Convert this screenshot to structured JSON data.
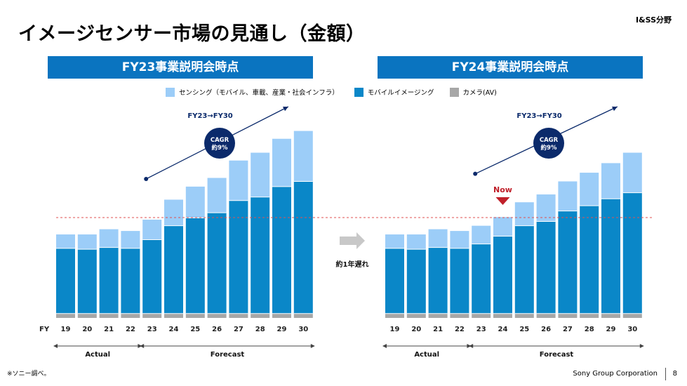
{
  "page": {
    "title": "イメージセンサー市場の見通し（金額）",
    "division": "I&SS分野",
    "footnote": "※ソニー調べ。",
    "corporation": "Sony Group Corporation",
    "page_number": "8"
  },
  "legend": {
    "items": [
      {
        "label": "センシング（モバイル、車載、産業・社会インフラ）",
        "color": "#9ccdf8"
      },
      {
        "label": "モバイルイメージング",
        "color": "#0a87c8"
      },
      {
        "label": "カメラ(AV)",
        "color": "#a7a7a7"
      }
    ]
  },
  "middle": {
    "delay_label": "約1年遅れ"
  },
  "chart_data": [
    {
      "type": "bar",
      "stacked": true,
      "title": "FY23事業説明会時点",
      "xlabel": "FY",
      "categories": [
        "19",
        "20",
        "21",
        "22",
        "23",
        "24",
        "25",
        "26",
        "27",
        "28",
        "29",
        "30"
      ],
      "series": [
        {
          "name": "カメラ(AV)",
          "values": [
            5,
            5,
            5,
            5,
            5,
            5,
            5,
            5,
            5,
            5,
            5,
            5
          ]
        },
        {
          "name": "モバイルイメージング",
          "values": [
            75,
            74,
            76,
            75,
            85,
            101,
            110,
            116,
            130,
            134,
            146,
            152
          ]
        },
        {
          "name": "センシング（モバイル、車載、産業・社会インフラ）",
          "values": [
            16,
            17,
            21,
            20,
            23,
            30,
            36,
            40,
            46,
            51,
            55,
            58
          ]
        }
      ],
      "ylim": [
        0,
        230
      ],
      "periods": [
        {
          "label": "Actual"
        },
        {
          "label": "Forecast"
        }
      ],
      "annotation": {
        "arrow_label": "FY23→FY30",
        "cagr_line1": "CAGR",
        "cagr_line2": "約9%"
      }
    },
    {
      "type": "bar",
      "stacked": true,
      "title": "FY24事業説明会時点",
      "xlabel": "",
      "categories": [
        "19",
        "20",
        "21",
        "22",
        "23",
        "24",
        "25",
        "26",
        "27",
        "28",
        "29",
        "30"
      ],
      "series": [
        {
          "name": "カメラ(AV)",
          "values": [
            5,
            5,
            5,
            5,
            5,
            5,
            5,
            5,
            5,
            5,
            5,
            5
          ]
        },
        {
          "name": "モバイルイメージング",
          "values": [
            75,
            74,
            76,
            75,
            80,
            89,
            101,
            106,
            118,
            124,
            132,
            139
          ]
        },
        {
          "name": "センシング（モバイル、車載、産業・社会インフラ）",
          "values": [
            16,
            17,
            21,
            20,
            21,
            22,
            27,
            31,
            34,
            38,
            41,
            46
          ]
        }
      ],
      "ylim": [
        0,
        230
      ],
      "periods": [
        {
          "label": "Actual"
        },
        {
          "label": "Forecast"
        }
      ],
      "annotation": {
        "arrow_label": "FY23→FY30",
        "cagr_line1": "CAGR",
        "cagr_line2": "約9%",
        "now_label": "Now",
        "now_category": "24"
      }
    }
  ]
}
